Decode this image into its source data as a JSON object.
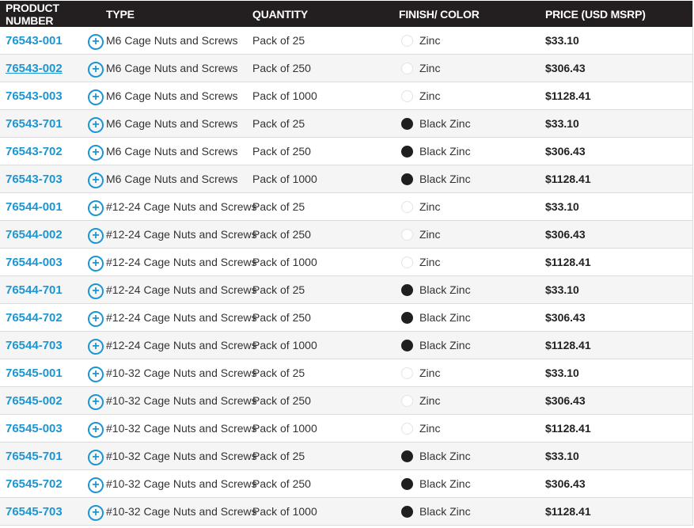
{
  "headers": [
    "PRODUCT NUMBER",
    "TYPE",
    "QUANTITY",
    "FINISH/ COLOR",
    "PRICE (USD MSRP)"
  ],
  "colors": {
    "header_bg": "#231f20",
    "link": "#1b96d3",
    "zinc": "#ffffff",
    "black_zinc": "#1f1f1f"
  },
  "rows": [
    {
      "pn": "76543-001",
      "type": "M6 Cage Nuts and Screws",
      "qty": "Pack of 25",
      "finish": "Zinc",
      "price": "$33.10"
    },
    {
      "pn": "76543-002",
      "type": "M6 Cage Nuts and Screws",
      "qty": "Pack of 250",
      "finish": "Zinc",
      "price": "$306.43"
    },
    {
      "pn": "76543-003",
      "type": "M6 Cage Nuts and Screws",
      "qty": "Pack of 1000",
      "finish": "Zinc",
      "price": "$1128.41"
    },
    {
      "pn": "76543-701",
      "type": "M6 Cage Nuts and Screws",
      "qty": "Pack of 25",
      "finish": "Black Zinc",
      "price": "$33.10"
    },
    {
      "pn": "76543-702",
      "type": "M6 Cage Nuts and Screws",
      "qty": "Pack of 250",
      "finish": "Black Zinc",
      "price": "$306.43"
    },
    {
      "pn": "76543-703",
      "type": "M6 Cage Nuts and Screws",
      "qty": "Pack of 1000",
      "finish": "Black Zinc",
      "price": "$1128.41"
    },
    {
      "pn": "76544-001",
      "type": "#12-24 Cage Nuts and Screws",
      "qty": "Pack of 25",
      "finish": "Zinc",
      "price": "$33.10"
    },
    {
      "pn": "76544-002",
      "type": "#12-24 Cage Nuts and Screws",
      "qty": "Pack of 250",
      "finish": "Zinc",
      "price": "$306.43"
    },
    {
      "pn": "76544-003",
      "type": "#12-24 Cage Nuts and Screws",
      "qty": "Pack of 1000",
      "finish": "Zinc",
      "price": "$1128.41"
    },
    {
      "pn": "76544-701",
      "type": "#12-24 Cage Nuts and Screws",
      "qty": "Pack of 25",
      "finish": "Black Zinc",
      "price": "$33.10"
    },
    {
      "pn": "76544-702",
      "type": "#12-24 Cage Nuts and Screws",
      "qty": "Pack of 250",
      "finish": "Black Zinc",
      "price": "$306.43"
    },
    {
      "pn": "76544-703",
      "type": "#12-24 Cage Nuts and Screws",
      "qty": "Pack of 1000",
      "finish": "Black Zinc",
      "price": "$1128.41"
    },
    {
      "pn": "76545-001",
      "type": "#10-32 Cage Nuts and Screws",
      "qty": "Pack of 25",
      "finish": "Zinc",
      "price": "$33.10"
    },
    {
      "pn": "76545-002",
      "type": "#10-32 Cage Nuts and Screws",
      "qty": "Pack of 250",
      "finish": "Zinc",
      "price": "$306.43"
    },
    {
      "pn": "76545-003",
      "type": "#10-32 Cage Nuts and Screws",
      "qty": "Pack of 1000",
      "finish": "Zinc",
      "price": "$1128.41"
    },
    {
      "pn": "76545-701",
      "type": "#10-32 Cage Nuts and Screws",
      "qty": "Pack of 25",
      "finish": "Black Zinc",
      "price": "$33.10"
    },
    {
      "pn": "76545-702",
      "type": "#10-32 Cage Nuts and Screws",
      "qty": "Pack of 250",
      "finish": "Black Zinc",
      "price": "$306.43"
    },
    {
      "pn": "76545-703",
      "type": "#10-32 Cage Nuts and Screws",
      "qty": "Pack of 1000",
      "finish": "Black Zinc",
      "price": "$1128.41"
    }
  ],
  "plus_icon": "plus-circle-icon"
}
